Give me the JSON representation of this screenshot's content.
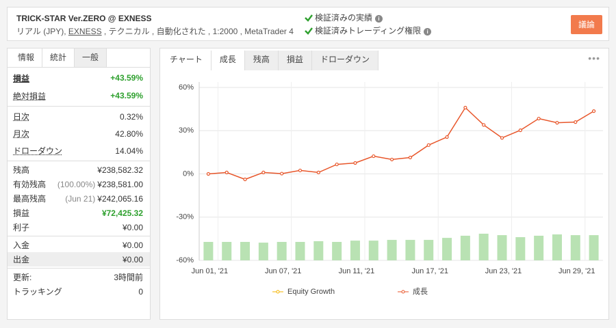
{
  "header": {
    "title": "TRICK-STAR Ver.ZERO @ EXNESS",
    "subtitle_parts": [
      "リアル (JPY), ",
      "EXNESS",
      " , テクニカル , 自動化された , 1:2000 , MetaTrader 4"
    ],
    "checks": [
      "検証済みの実績",
      "検証済みトレーディング権限"
    ],
    "button": "議論"
  },
  "stats": {
    "tabs": [
      "情報",
      "統計",
      "一般"
    ],
    "active_tab": 1,
    "groups": [
      {
        "rows": [
          {
            "label": "損益",
            "value": "+43.59%",
            "color": "#2ea02e"
          },
          {
            "label": "絶対損益",
            "value": "+43.59%",
            "color": "#2ea02e"
          }
        ]
      },
      {
        "rows": [
          {
            "label": "日次",
            "value": "0.32%"
          },
          {
            "label": "月次",
            "value": "42.80%"
          },
          {
            "label": "ドローダウン",
            "value": "14.04%"
          }
        ]
      },
      {
        "rows": [
          {
            "label": "残高",
            "value": "¥238,582.32"
          },
          {
            "label": "有効残高",
            "note": "(100.00%)",
            "value": "¥238,581.00"
          },
          {
            "label": "最高残高",
            "note": "(Jun 21)",
            "value": "¥242,065.16"
          },
          {
            "label": "損益",
            "value": "¥72,425.32",
            "color": "#2ea02e"
          },
          {
            "label": "利子",
            "value": "¥0.00"
          }
        ]
      },
      {
        "rows": [
          {
            "label": "入金",
            "value": "¥0.00"
          },
          {
            "label": "出金",
            "value": "¥0.00"
          }
        ]
      },
      {
        "rows": [
          {
            "label": "更新:",
            "value": "3時間前"
          },
          {
            "label": "トラッキング",
            "value": "0"
          }
        ]
      }
    ]
  },
  "chart_tabs": {
    "tabs": [
      "チャート",
      "成長",
      "残高",
      "損益",
      "ドローダウン"
    ],
    "active_tab": 1
  },
  "chart_data": {
    "type": "line",
    "categories": [
      "Jun 01, '21",
      null,
      null,
      null,
      "Jun 07, '21",
      null,
      null,
      null,
      "Jun 11, '21",
      null,
      null,
      null,
      "Jun 17, '21",
      null,
      null,
      null,
      "Jun 23, '21",
      null,
      null,
      null,
      "Jun 29, '21",
      null
    ],
    "series": [
      {
        "color": "#e8562a",
        "values": [
          0,
          1,
          -3.8,
          1,
          0.2,
          2.4,
          1,
          6.6,
          7.6,
          12.3,
          10,
          11.4,
          20,
          25.6,
          46,
          34,
          25,
          30.3,
          38.4,
          35.5,
          36,
          43.59
        ]
      }
    ],
    "bars": {
      "color": "#b9e2b3",
      "values": [
        -47.2,
        -47.2,
        -47.2,
        -47.7,
        -47.2,
        -47.2,
        -46.7,
        -47.2,
        -46.3,
        -46.3,
        -45.8,
        -45.8,
        -45.8,
        -44.4,
        -42.9,
        -41.5,
        -42.5,
        -43.9,
        -42.9,
        -42.0,
        -42.5,
        -42.5
      ]
    },
    "legend": [
      {
        "name": "Equity Growth",
        "color": "#f5b400"
      },
      {
        "name": "成長",
        "color": "#e8562a"
      }
    ],
    "ylim": [
      -60,
      60
    ],
    "yticks": [
      {
        "value": -60,
        "label": "-60%"
      },
      {
        "value": -30,
        "label": "-30%"
      },
      {
        "value": 0,
        "label": "0%"
      },
      {
        "value": 30,
        "label": "30%"
      },
      {
        "value": 60,
        "label": "60%"
      }
    ],
    "grid": true
  }
}
